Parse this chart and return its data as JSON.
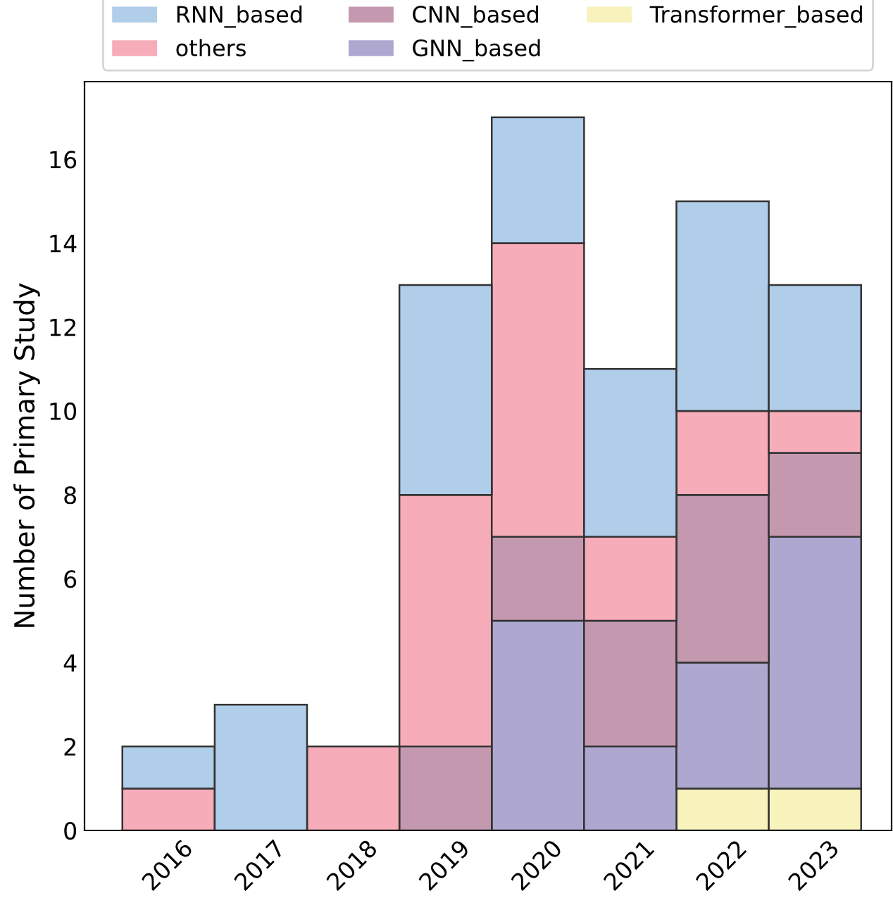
{
  "chart_data": {
    "type": "bar",
    "stacked": true,
    "ylabel": "Number of Primary Study",
    "categories": [
      "2016",
      "2017",
      "2018",
      "2019",
      "2020",
      "2021",
      "2022",
      "2023"
    ],
    "series": [
      {
        "name": "Transformer_based",
        "color": "#f8f3bd",
        "values": [
          0,
          0,
          0,
          0,
          0,
          0,
          1,
          1
        ]
      },
      {
        "name": "GNN_based",
        "color": "#aea8d0",
        "values": [
          0,
          0,
          0,
          0,
          5,
          2,
          3,
          6
        ]
      },
      {
        "name": "CNN_based",
        "color": "#c499b0",
        "values": [
          0,
          0,
          0,
          2,
          2,
          3,
          4,
          2
        ]
      },
      {
        "name": "others",
        "color": "#f7acb9",
        "values": [
          1,
          0,
          2,
          6,
          7,
          2,
          2,
          1
        ]
      },
      {
        "name": "RNN_based",
        "color": "#b0cde9",
        "values": [
          1,
          3,
          0,
          5,
          3,
          4,
          5,
          3
        ]
      }
    ],
    "ylim": [
      0,
      17.85
    ],
    "yticks": [
      0,
      2,
      4,
      6,
      8,
      10,
      12,
      14,
      16
    ],
    "grid": false,
    "legend": "top"
  }
}
